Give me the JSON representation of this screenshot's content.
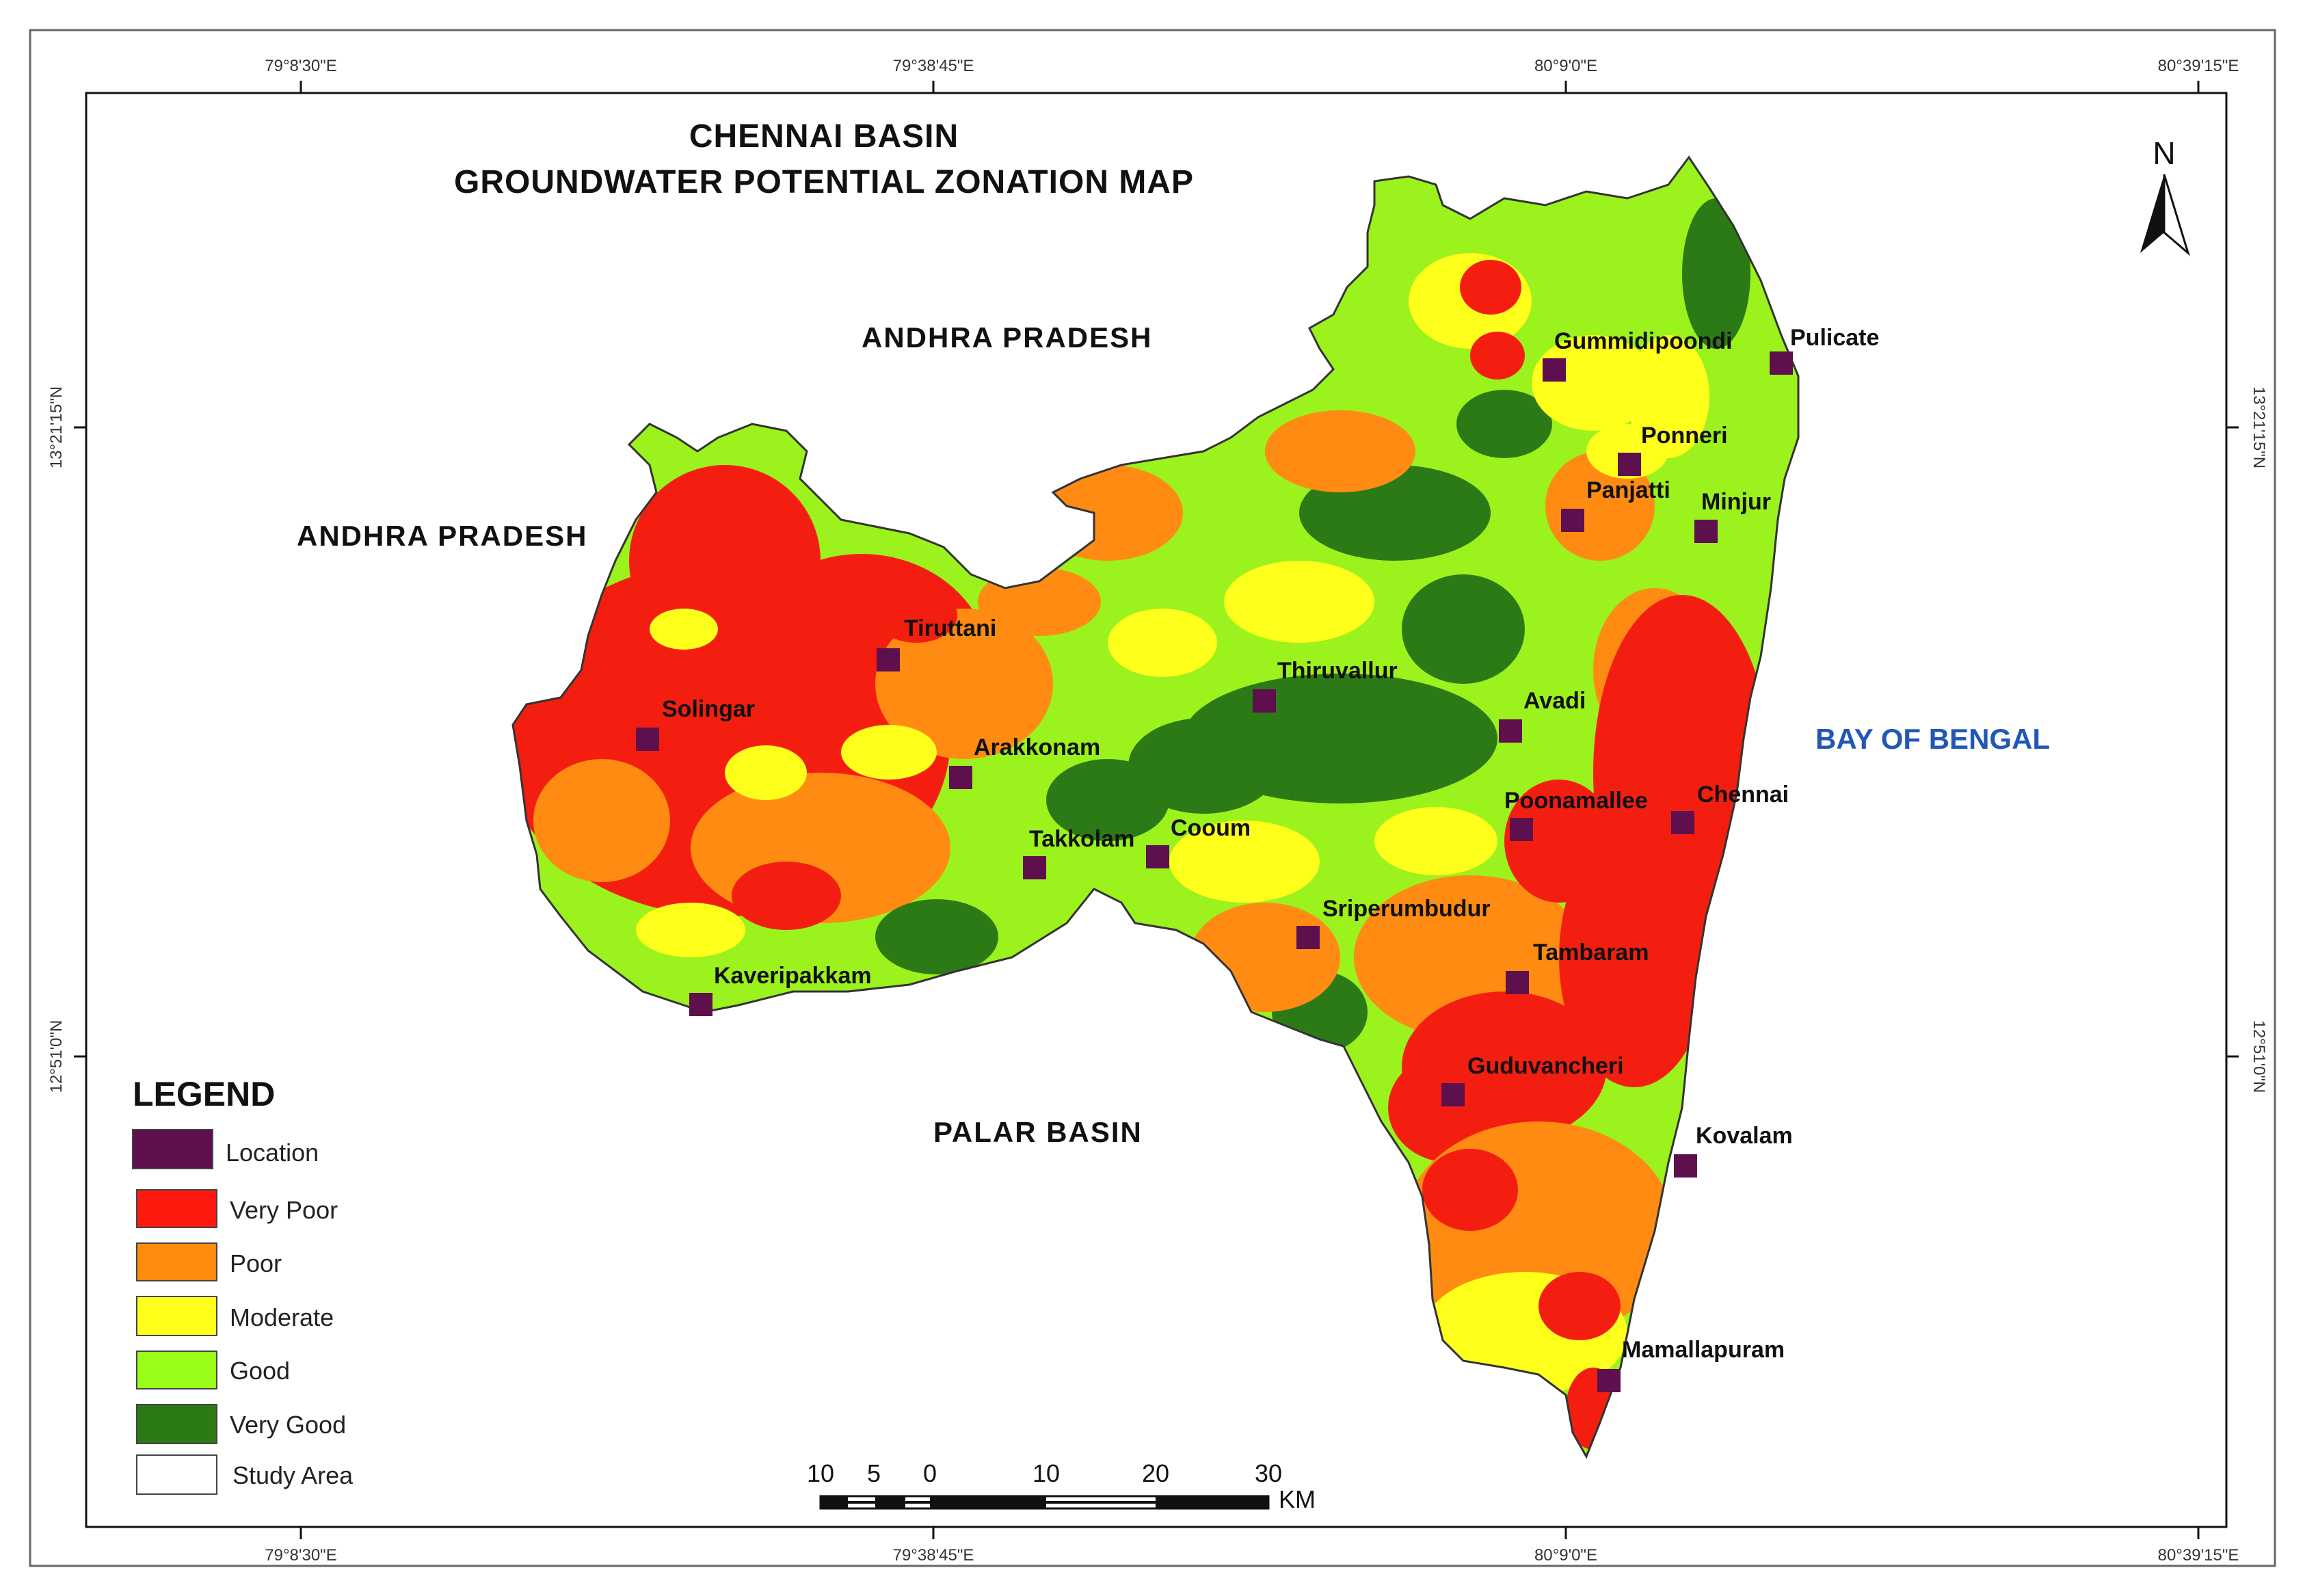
{
  "title": {
    "line1": "CHENNAI BASIN",
    "line2": "GROUNDWATER POTENTIAL ZONATION MAP"
  },
  "graticule": {
    "lon_labels": [
      "79°8'30\"E",
      "79°38'45\"E",
      "80°9'0\"E",
      "80°39'15\"E"
    ],
    "lat_labels": [
      "13°21'15\"N",
      "12°51'0\"N"
    ]
  },
  "regions": {
    "andhra_north": "ANDHRA PRADESH",
    "andhra_west": "ANDHRA PRADESH",
    "palar": "PALAR BASIN",
    "bay": "BAY OF BENGAL"
  },
  "north_arrow": {
    "label": "N"
  },
  "legend": {
    "title": "LEGEND",
    "items": [
      {
        "label": "Location",
        "color": "#5e0f4d"
      },
      {
        "label": "Very Poor",
        "color": "#ff1a0f"
      },
      {
        "label": "Poor",
        "color": "#ff8c0f"
      },
      {
        "label": "Moderate",
        "color": "#ffff1a"
      },
      {
        "label": "Good",
        "color": "#99ff1a"
      },
      {
        "label": "Very Good",
        "color": "#2b7a14"
      },
      {
        "label": "Study Area",
        "color": "#ffffff"
      }
    ]
  },
  "scale_bar": {
    "labels": [
      "10",
      "5",
      "0",
      "10",
      "20",
      "30"
    ],
    "unit": "KM"
  },
  "locations": [
    {
      "name": "Gummidipoondi"
    },
    {
      "name": "Pulicate"
    },
    {
      "name": "Ponneri"
    },
    {
      "name": "Panjatti"
    },
    {
      "name": "Minjur"
    },
    {
      "name": "Tiruttani"
    },
    {
      "name": "Thiruvallur"
    },
    {
      "name": "Avadi"
    },
    {
      "name": "Solingar"
    },
    {
      "name": "Arakkonam"
    },
    {
      "name": "Poonamallee"
    },
    {
      "name": "Chennai"
    },
    {
      "name": "Takkolam"
    },
    {
      "name": "Cooum"
    },
    {
      "name": "Sriperumbudur"
    },
    {
      "name": "Tambaram"
    },
    {
      "name": "Kaveripakkam"
    },
    {
      "name": "Guduvancheri"
    },
    {
      "name": "Kovalam"
    },
    {
      "name": "Mamallapuram"
    }
  ]
}
